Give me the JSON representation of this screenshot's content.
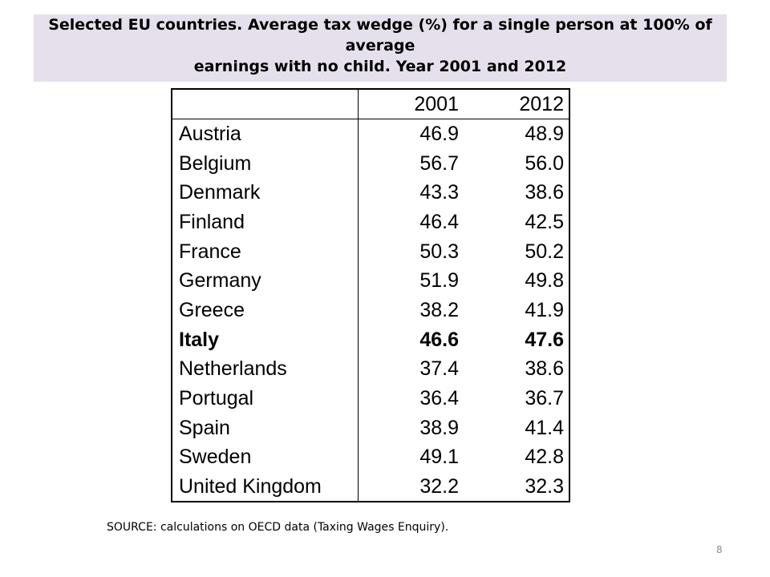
{
  "title": {
    "line1": "Selected EU countries. Average tax wedge (%) for a single person at 100% of average",
    "line2": "earnings with no child. Year 2001 and 2012"
  },
  "table": {
    "headers": [
      "",
      "2001",
      "2012"
    ],
    "rows": [
      {
        "country": "Austria",
        "y2001": "46.9",
        "y2012": "48.9",
        "bold": false
      },
      {
        "country": "Belgium",
        "y2001": "56.7",
        "y2012": "56.0",
        "bold": false
      },
      {
        "country": "Denmark",
        "y2001": "43.3",
        "y2012": "38.6",
        "bold": false
      },
      {
        "country": "Finland",
        "y2001": "46.4",
        "y2012": "42.5",
        "bold": false
      },
      {
        "country": "France",
        "y2001": "50.3",
        "y2012": "50.2",
        "bold": false
      },
      {
        "country": "Germany",
        "y2001": "51.9",
        "y2012": "49.8",
        "bold": false
      },
      {
        "country": "Greece",
        "y2001": "38.2",
        "y2012": "41.9",
        "bold": false
      },
      {
        "country": "Italy",
        "y2001": "46.6",
        "y2012": "47.6",
        "bold": true
      },
      {
        "country": "Netherlands",
        "y2001": "37.4",
        "y2012": "38.6",
        "bold": false
      },
      {
        "country": "Portugal",
        "y2001": "36.4",
        "y2012": "36.7",
        "bold": false
      },
      {
        "country": "Spain",
        "y2001": "38.9",
        "y2012": "41.4",
        "bold": false
      },
      {
        "country": "Sweden",
        "y2001": "49.1",
        "y2012": "42.8",
        "bold": false
      },
      {
        "country": "United Kingdom",
        "y2001": "32.2",
        "y2012": "32.3",
        "bold": false
      }
    ]
  },
  "source": "SOURCE: calculations on OECD data  (Taxing Wages Enquiry).",
  "slide_number": "8",
  "colors": {
    "title_band": "#e6e0ec",
    "slide_number": "#8c8c8c"
  }
}
